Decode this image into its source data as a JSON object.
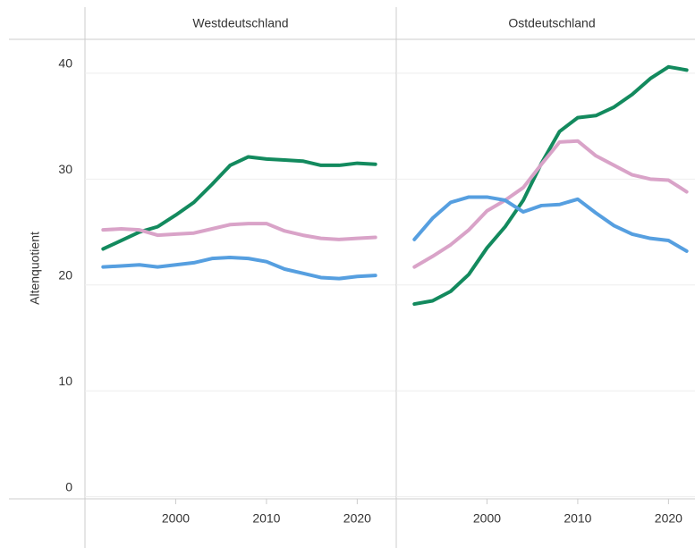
{
  "chart_data": [
    {
      "type": "line",
      "title": "Westdeutschland",
      "y_label": "Altenquotient",
      "x": [
        1992,
        1994,
        1996,
        1998,
        2000,
        2002,
        2004,
        2006,
        2008,
        2010,
        2012,
        2014,
        2016,
        2018,
        2020,
        2022
      ],
      "series": [
        {
          "color": "#138a5e",
          "values": [
            23.4,
            24.2,
            25.0,
            25.5,
            26.6,
            27.8,
            29.5,
            31.3,
            32.1,
            31.9,
            31.8,
            31.7,
            31.3,
            31.3,
            31.5,
            31.4
          ]
        },
        {
          "color": "#d9a3c8",
          "values": [
            25.2,
            25.3,
            25.2,
            24.7,
            24.8,
            24.9,
            25.3,
            25.7,
            25.8,
            25.8,
            25.1,
            24.7,
            24.4,
            24.3,
            24.4,
            24.5
          ]
        },
        {
          "color": "#569fe0",
          "values": [
            21.7,
            21.8,
            21.9,
            21.7,
            21.9,
            22.1,
            22.5,
            22.6,
            22.5,
            22.2,
            21.5,
            21.1,
            20.7,
            20.6,
            20.8,
            20.9
          ]
        }
      ],
      "xlim": [
        1990,
        2024.3
      ],
      "xticks": [
        2000,
        2010,
        2020
      ],
      "ylim": [
        -0.2,
        43.2
      ],
      "yticks": [
        0,
        10,
        20,
        30,
        40
      ],
      "grid": true
    },
    {
      "type": "line",
      "title": "Ostdeutschland",
      "x": [
        1992,
        1994,
        1996,
        1998,
        2000,
        2002,
        2004,
        2006,
        2008,
        2010,
        2012,
        2014,
        2016,
        2018,
        2020,
        2022
      ],
      "series": [
        {
          "color": "#138a5e",
          "values": [
            18.2,
            18.5,
            19.4,
            21.0,
            23.5,
            25.5,
            28.0,
            31.5,
            34.5,
            35.8,
            36.0,
            36.8,
            38.0,
            39.5,
            40.6,
            40.3
          ]
        },
        {
          "color": "#d9a3c8",
          "values": [
            21.7,
            22.7,
            23.8,
            25.2,
            27.0,
            28.0,
            29.2,
            31.4,
            33.5,
            33.6,
            32.2,
            31.3,
            30.4,
            30.0,
            29.9,
            28.8
          ]
        },
        {
          "color": "#569fe0",
          "values": [
            24.3,
            26.3,
            27.8,
            28.3,
            28.3,
            28.0,
            26.9,
            27.5,
            27.6,
            28.1,
            26.8,
            25.6,
            24.8,
            24.4,
            24.2,
            23.2
          ]
        }
      ],
      "xlim": [
        1990,
        2024.3
      ],
      "xticks": [
        2000,
        2010,
        2020
      ],
      "ylim": [
        -0.2,
        43.2
      ],
      "yticks": [
        0,
        10,
        20,
        30,
        40
      ],
      "grid": true
    }
  ]
}
